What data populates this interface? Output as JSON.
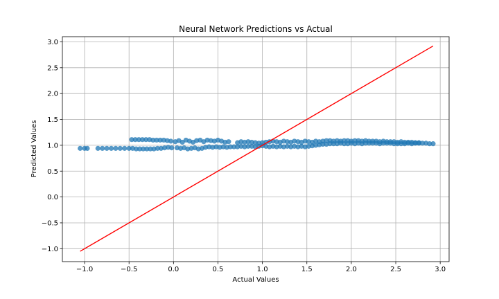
{
  "chart_data": {
    "type": "scatter",
    "title": "Neural Network Predictions vs Actual",
    "xlabel": "Actual Values",
    "ylabel": "Predicted Values",
    "xlim": [
      -1.25,
      3.1
    ],
    "ylim": [
      -1.25,
      3.1
    ],
    "xticks": [
      -1.0,
      -0.5,
      0.0,
      0.5,
      1.0,
      1.5,
      2.0,
      2.5,
      3.0
    ],
    "yticks": [
      -1.0,
      -0.5,
      0.0,
      0.5,
      1.0,
      1.5,
      2.0,
      2.5,
      3.0
    ],
    "xtick_labels": [
      "−1.0",
      "−0.5",
      "0.0",
      "0.5",
      "1.0",
      "1.5",
      "2.0",
      "2.5",
      "3.0"
    ],
    "ytick_labels": [
      "−1.0",
      "−0.5",
      "0.0",
      "0.5",
      "1.0",
      "1.5",
      "2.0",
      "2.5",
      "3.0"
    ],
    "grid": true,
    "marker_color": "#1f77b4",
    "line_color": "#ff0000",
    "series": [
      {
        "kind": "scatter",
        "points": [
          [
            -1.05,
            0.94
          ],
          [
            -1.0,
            0.94
          ],
          [
            -0.97,
            0.94
          ],
          [
            -0.85,
            0.94
          ],
          [
            -0.8,
            0.94
          ],
          [
            -0.75,
            0.94
          ],
          [
            -0.7,
            0.94
          ],
          [
            -0.65,
            0.94
          ],
          [
            -0.6,
            0.94
          ],
          [
            -0.55,
            0.94
          ],
          [
            -0.5,
            0.94
          ],
          [
            -0.46,
            0.94
          ],
          [
            -0.42,
            0.93
          ],
          [
            -0.38,
            0.93
          ],
          [
            -0.34,
            0.93
          ],
          [
            -0.3,
            0.93
          ],
          [
            -0.26,
            0.93
          ],
          [
            -0.22,
            0.93
          ],
          [
            -0.18,
            0.94
          ],
          [
            -0.14,
            0.94
          ],
          [
            -0.1,
            0.95
          ],
          [
            -0.06,
            0.96
          ],
          [
            -0.02,
            0.95
          ],
          [
            -0.47,
            1.11
          ],
          [
            -0.43,
            1.11
          ],
          [
            -0.39,
            1.11
          ],
          [
            -0.35,
            1.11
          ],
          [
            -0.31,
            1.11
          ],
          [
            -0.27,
            1.11
          ],
          [
            -0.23,
            1.1
          ],
          [
            -0.19,
            1.1
          ],
          [
            -0.15,
            1.1
          ],
          [
            -0.11,
            1.1
          ],
          [
            -0.07,
            1.09
          ],
          [
            -0.03,
            1.08
          ],
          [
            0.02,
            1.07
          ],
          [
            0.06,
            1.09
          ],
          [
            0.1,
            1.06
          ],
          [
            0.14,
            1.1
          ],
          [
            0.18,
            1.08
          ],
          [
            0.22,
            1.06
          ],
          [
            0.26,
            1.09
          ],
          [
            0.3,
            1.1
          ],
          [
            0.34,
            1.07
          ],
          [
            0.38,
            1.1
          ],
          [
            0.42,
            1.09
          ],
          [
            0.46,
            1.08
          ],
          [
            0.5,
            1.1
          ],
          [
            0.54,
            1.08
          ],
          [
            0.58,
            1.06
          ],
          [
            0.62,
            1.07
          ],
          [
            0.04,
            0.95
          ],
          [
            0.08,
            0.94
          ],
          [
            0.12,
            0.95
          ],
          [
            0.16,
            0.93
          ],
          [
            0.2,
            0.94
          ],
          [
            0.24,
            0.95
          ],
          [
            0.28,
            0.93
          ],
          [
            0.32,
            0.94
          ],
          [
            0.36,
            0.96
          ],
          [
            0.4,
            0.97
          ],
          [
            0.44,
            0.96
          ],
          [
            0.48,
            0.97
          ],
          [
            0.52,
            0.96
          ],
          [
            0.56,
            0.97
          ],
          [
            0.6,
            0.96
          ],
          [
            0.64,
            0.97
          ],
          [
            0.68,
            0.97
          ],
          [
            0.72,
            0.97
          ],
          [
            0.76,
            0.98
          ],
          [
            0.8,
            0.97
          ],
          [
            0.84,
            0.98
          ],
          [
            0.72,
            1.05
          ],
          [
            0.76,
            1.07
          ],
          [
            0.8,
            1.06
          ],
          [
            0.84,
            1.07
          ],
          [
            0.88,
            1.06
          ],
          [
            0.92,
            1.05
          ],
          [
            0.96,
            1.04
          ],
          [
            0.88,
            0.98
          ],
          [
            0.92,
            0.97
          ],
          [
            0.96,
            0.98
          ],
          [
            1.0,
            0.99
          ],
          [
            1.04,
            0.98
          ],
          [
            1.08,
            0.97
          ],
          [
            1.12,
            0.98
          ],
          [
            1.0,
            1.05
          ],
          [
            1.04,
            1.06
          ],
          [
            1.08,
            1.07
          ],
          [
            1.12,
            1.08
          ],
          [
            1.16,
            1.07
          ],
          [
            1.2,
            1.06
          ],
          [
            1.24,
            1.08
          ],
          [
            1.16,
            0.97
          ],
          [
            1.2,
            0.98
          ],
          [
            1.24,
            0.97
          ],
          [
            1.28,
            0.98
          ],
          [
            1.32,
            0.97
          ],
          [
            1.36,
            0.98
          ],
          [
            1.4,
            0.97
          ],
          [
            1.28,
            1.07
          ],
          [
            1.32,
            1.06
          ],
          [
            1.36,
            1.08
          ],
          [
            1.4,
            1.07
          ],
          [
            1.44,
            1.06
          ],
          [
            1.48,
            1.08
          ],
          [
            1.52,
            1.07
          ],
          [
            1.44,
            0.98
          ],
          [
            1.48,
            0.97
          ],
          [
            1.52,
            0.98
          ],
          [
            1.56,
            0.99
          ],
          [
            1.6,
            1.0
          ],
          [
            1.64,
            1.01
          ],
          [
            1.56,
            1.06
          ],
          [
            1.6,
            1.08
          ],
          [
            1.64,
            1.07
          ],
          [
            1.68,
            1.08
          ],
          [
            1.72,
            1.09
          ],
          [
            1.76,
            1.09
          ],
          [
            1.8,
            1.08
          ],
          [
            1.68,
            1.02
          ],
          [
            1.72,
            1.02
          ],
          [
            1.76,
            1.03
          ],
          [
            1.8,
            1.03
          ],
          [
            1.84,
            1.03
          ],
          [
            1.88,
            1.04
          ],
          [
            1.92,
            1.03
          ],
          [
            1.84,
            1.09
          ],
          [
            1.88,
            1.08
          ],
          [
            1.92,
            1.09
          ],
          [
            1.96,
            1.09
          ],
          [
            2.0,
            1.08
          ],
          [
            2.04,
            1.09
          ],
          [
            2.08,
            1.09
          ],
          [
            1.96,
            1.03
          ],
          [
            2.0,
            1.04
          ],
          [
            2.04,
            1.03
          ],
          [
            2.08,
            1.04
          ],
          [
            2.12,
            1.03
          ],
          [
            2.16,
            1.04
          ],
          [
            2.2,
            1.04
          ],
          [
            2.12,
            1.08
          ],
          [
            2.16,
            1.09
          ],
          [
            2.2,
            1.08
          ],
          [
            2.24,
            1.08
          ],
          [
            2.28,
            1.08
          ],
          [
            2.32,
            1.07
          ],
          [
            2.36,
            1.08
          ],
          [
            2.24,
            1.04
          ],
          [
            2.28,
            1.04
          ],
          [
            2.32,
            1.03
          ],
          [
            2.36,
            1.04
          ],
          [
            2.4,
            1.04
          ],
          [
            2.44,
            1.04
          ],
          [
            2.48,
            1.03
          ],
          [
            2.4,
            1.07
          ],
          [
            2.44,
            1.07
          ],
          [
            2.48,
            1.07
          ],
          [
            2.52,
            1.06
          ],
          [
            2.56,
            1.07
          ],
          [
            2.6,
            1.06
          ],
          [
            2.64,
            1.06
          ],
          [
            2.52,
            1.03
          ],
          [
            2.56,
            1.03
          ],
          [
            2.6,
            1.03
          ],
          [
            2.64,
            1.04
          ],
          [
            2.68,
            1.03
          ],
          [
            2.72,
            1.04
          ],
          [
            2.76,
            1.04
          ],
          [
            2.68,
            1.06
          ],
          [
            2.72,
            1.05
          ],
          [
            2.76,
            1.05
          ],
          [
            2.8,
            1.04
          ],
          [
            2.84,
            1.04
          ],
          [
            2.88,
            1.03
          ],
          [
            2.92,
            1.03
          ]
        ]
      },
      {
        "kind": "line",
        "points": [
          [
            -1.05,
            -1.05
          ],
          [
            2.92,
            2.92
          ]
        ]
      }
    ]
  }
}
